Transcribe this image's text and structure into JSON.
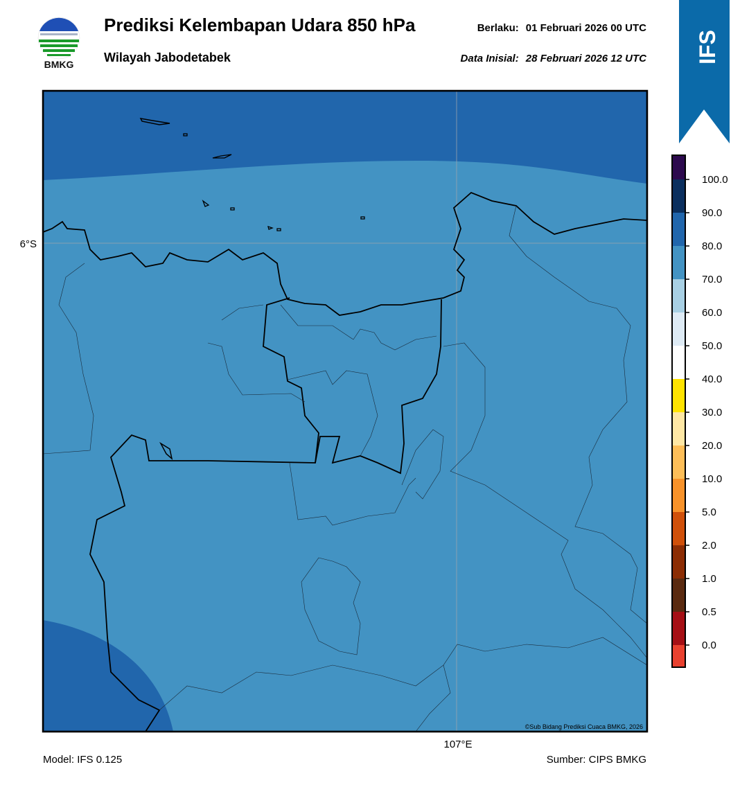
{
  "logo": {
    "text": "BMKG"
  },
  "header": {
    "title": "Prediksi Kelembapan Udara 850 hPa",
    "subtitle": "Wilayah Jabodetabek",
    "valid_label": "Berlaku:",
    "valid_value": "01 Februari 2026 00 UTC",
    "init_label": "Data Inisial:",
    "init_value": "28 Februari 2026 12 UTC"
  },
  "badge": {
    "text": "IFS"
  },
  "map": {
    "lat_label": "6°S",
    "lon_label": "107°E",
    "credit": "©Sub Bidang Prediksi Cuaca BMKG, 2026"
  },
  "colorbar": {
    "labels": [
      "0.0",
      "0.5",
      "1.0",
      "2.0",
      "5.0",
      "10.0",
      "20.0",
      "30.0",
      "40.0",
      "50.0",
      "60.0",
      "70.0",
      "80.0",
      "90.0",
      "100.0"
    ],
    "colors": [
      "#e8412f",
      "#a50f15",
      "#5a2a10",
      "#8c2d04",
      "#d0500a",
      "#f7922a",
      "#fdbe58",
      "#fee7a4",
      "#ffe300",
      "#ffffff",
      "#deebf5",
      "#a8d0e4",
      "#4393c3",
      "#2166ac",
      "#0b2f5e",
      "#2d0a4e"
    ]
  },
  "footer": {
    "model": "Model: IFS 0.125",
    "source": "Sumber: CIPS BMKG"
  }
}
